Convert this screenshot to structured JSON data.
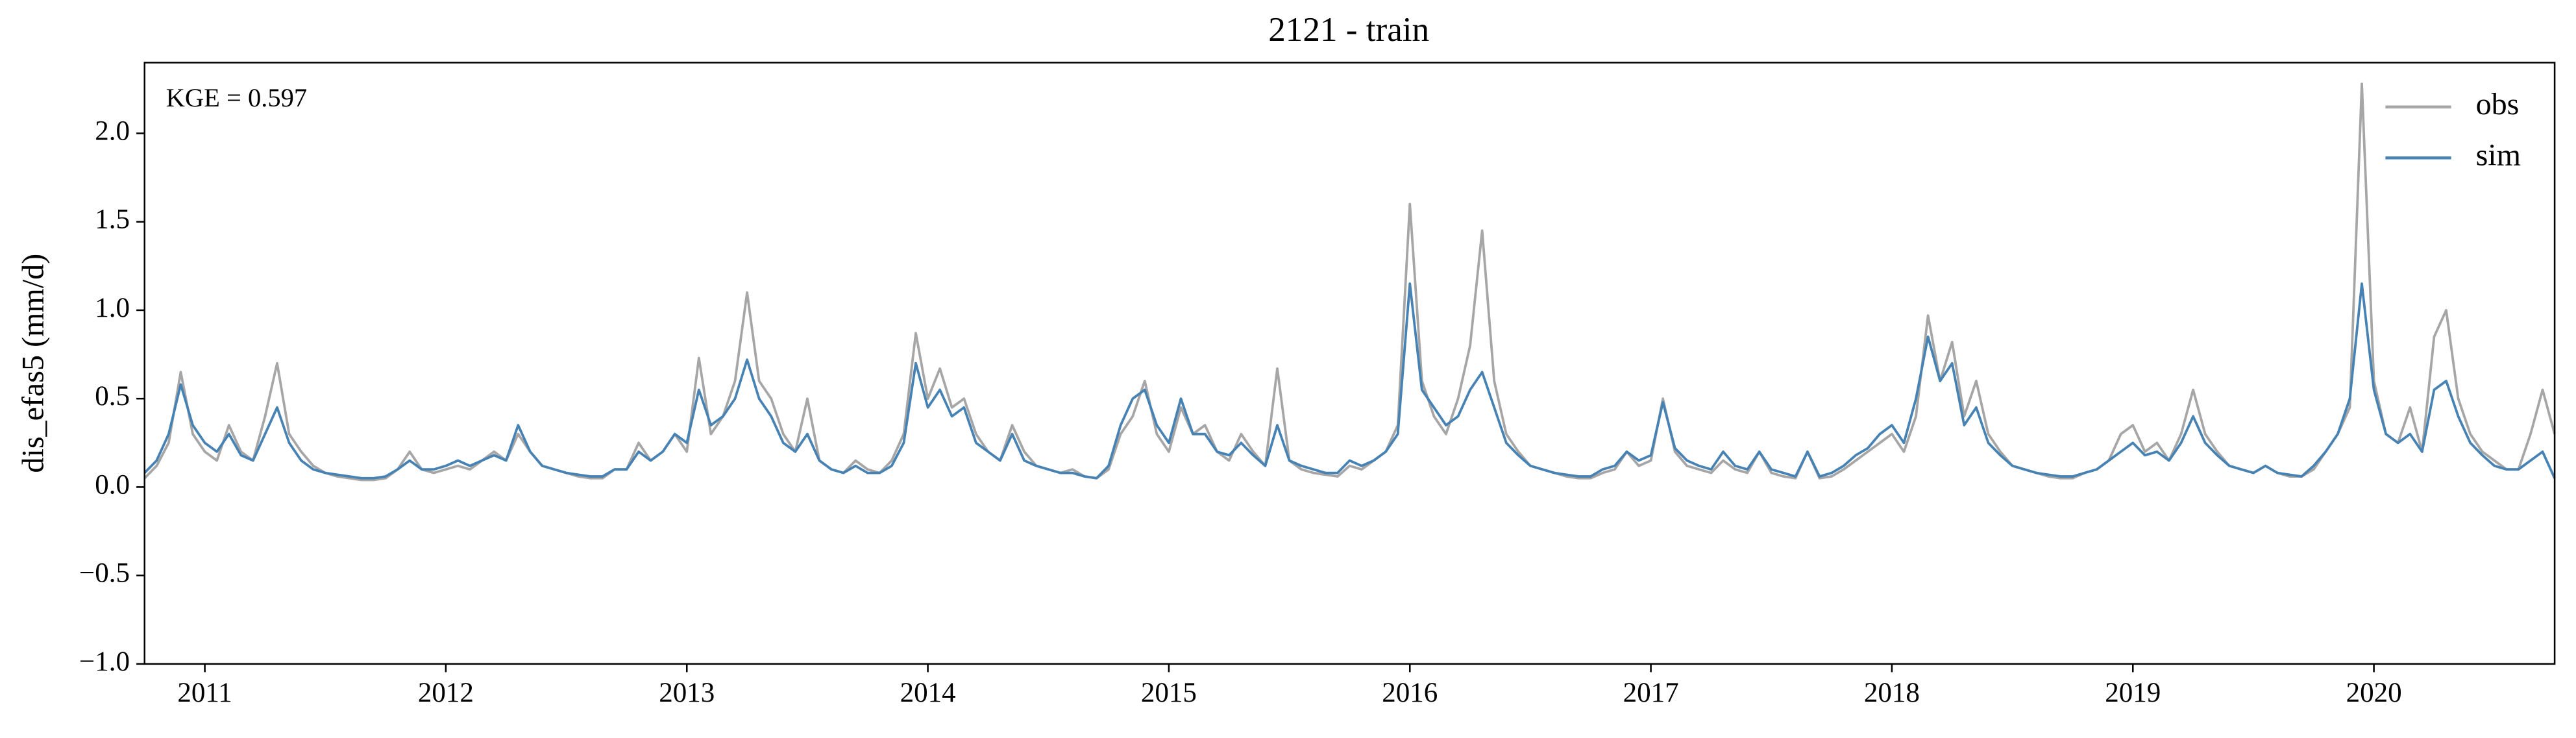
{
  "chart_data": {
    "type": "line",
    "title": "2121 - train",
    "ylabel": "dis_efas5 (mm/d)",
    "annotation": "KGE = 0.597",
    "x": [
      2010.75,
      2010.8,
      2010.85,
      2010.9,
      2010.95,
      2011,
      2011.05,
      2011.1,
      2011.15,
      2011.2,
      2011.25,
      2011.3,
      2011.35,
      2011.4,
      2011.45,
      2011.5,
      2011.55,
      2011.6,
      2011.65,
      2011.7,
      2011.75,
      2011.8,
      2011.85,
      2011.9,
      2011.95,
      2012,
      2012.05,
      2012.1,
      2012.15,
      2012.2,
      2012.25,
      2012.3,
      2012.35,
      2012.4,
      2012.45,
      2012.5,
      2012.55,
      2012.6,
      2012.65,
      2012.7,
      2012.75,
      2012.8,
      2012.85,
      2012.9,
      2012.95,
      2013,
      2013.05,
      2013.1,
      2013.15,
      2013.2,
      2013.25,
      2013.3,
      2013.35,
      2013.4,
      2013.45,
      2013.5,
      2013.55,
      2013.6,
      2013.65,
      2013.7,
      2013.75,
      2013.8,
      2013.85,
      2013.9,
      2013.95,
      2014,
      2014.05,
      2014.1,
      2014.15,
      2014.2,
      2014.25,
      2014.3,
      2014.35,
      2014.4,
      2014.45,
      2014.5,
      2014.55,
      2014.6,
      2014.65,
      2014.7,
      2014.75,
      2014.8,
      2014.85,
      2014.9,
      2014.95,
      2015,
      2015.05,
      2015.1,
      2015.15,
      2015.2,
      2015.25,
      2015.3,
      2015.35,
      2015.4,
      2015.45,
      2015.5,
      2015.55,
      2015.6,
      2015.65,
      2015.7,
      2015.75,
      2015.8,
      2015.85,
      2015.9,
      2015.95,
      2016,
      2016.05,
      2016.1,
      2016.15,
      2016.2,
      2016.25,
      2016.3,
      2016.35,
      2016.4,
      2016.45,
      2016.5,
      2016.55,
      2016.6,
      2016.65,
      2016.7,
      2016.75,
      2016.8,
      2016.85,
      2016.9,
      2016.95,
      2017,
      2017.05,
      2017.1,
      2017.15,
      2017.2,
      2017.25,
      2017.3,
      2017.35,
      2017.4,
      2017.45,
      2017.5,
      2017.55,
      2017.6,
      2017.65,
      2017.7,
      2017.75,
      2017.8,
      2017.85,
      2017.9,
      2017.95,
      2018,
      2018.05,
      2018.1,
      2018.15,
      2018.2,
      2018.25,
      2018.3,
      2018.35,
      2018.4,
      2018.45,
      2018.5,
      2018.55,
      2018.6,
      2018.65,
      2018.7,
      2018.75,
      2018.8,
      2018.85,
      2018.9,
      2018.95,
      2019,
      2019.05,
      2019.1,
      2019.15,
      2019.2,
      2019.25,
      2019.3,
      2019.35,
      2019.4,
      2019.45,
      2019.5,
      2019.55,
      2019.6,
      2019.65,
      2019.7,
      2019.75,
      2019.8,
      2019.85,
      2019.9,
      2019.95,
      2020,
      2020.05,
      2020.1,
      2020.15,
      2020.2,
      2020.25,
      2020.3,
      2020.35,
      2020.4,
      2020.45,
      2020.5,
      2020.55,
      2020.6,
      2020.65,
      2020.7,
      2020.75
    ],
    "series": [
      {
        "name": "obs",
        "color": "#a6a6a6",
        "values": [
          0.05,
          0.12,
          0.25,
          0.65,
          0.3,
          0.2,
          0.15,
          0.35,
          0.2,
          0.15,
          0.4,
          0.7,
          0.3,
          0.2,
          0.12,
          0.08,
          0.06,
          0.05,
          0.04,
          0.04,
          0.05,
          0.1,
          0.2,
          0.1,
          0.08,
          0.1,
          0.12,
          0.1,
          0.15,
          0.2,
          0.15,
          0.3,
          0.2,
          0.12,
          0.1,
          0.08,
          0.06,
          0.05,
          0.05,
          0.1,
          0.1,
          0.25,
          0.15,
          0.2,
          0.3,
          0.2,
          0.73,
          0.3,
          0.4,
          0.6,
          1.1,
          0.6,
          0.5,
          0.3,
          0.2,
          0.5,
          0.15,
          0.1,
          0.08,
          0.15,
          0.1,
          0.08,
          0.15,
          0.3,
          0.87,
          0.5,
          0.67,
          0.45,
          0.5,
          0.3,
          0.2,
          0.15,
          0.35,
          0.2,
          0.12,
          0.1,
          0.08,
          0.1,
          0.06,
          0.05,
          0.1,
          0.3,
          0.4,
          0.6,
          0.3,
          0.2,
          0.45,
          0.3,
          0.35,
          0.2,
          0.15,
          0.3,
          0.2,
          0.12,
          0.67,
          0.15,
          0.1,
          0.08,
          0.07,
          0.06,
          0.12,
          0.1,
          0.15,
          0.2,
          0.35,
          1.6,
          0.6,
          0.4,
          0.3,
          0.5,
          0.8,
          1.45,
          0.6,
          0.3,
          0.2,
          0.12,
          0.1,
          0.08,
          0.06,
          0.05,
          0.05,
          0.08,
          0.1,
          0.2,
          0.12,
          0.15,
          0.5,
          0.2,
          0.12,
          0.1,
          0.08,
          0.15,
          0.1,
          0.08,
          0.2,
          0.08,
          0.06,
          0.05,
          0.2,
          0.05,
          0.06,
          0.1,
          0.15,
          0.2,
          0.25,
          0.3,
          0.2,
          0.4,
          0.97,
          0.6,
          0.82,
          0.4,
          0.6,
          0.3,
          0.2,
          0.12,
          0.1,
          0.08,
          0.06,
          0.05,
          0.05,
          0.08,
          0.1,
          0.15,
          0.3,
          0.35,
          0.2,
          0.25,
          0.15,
          0.3,
          0.55,
          0.3,
          0.2,
          0.12,
          0.1,
          0.08,
          0.12,
          0.08,
          0.06,
          0.06,
          0.1,
          0.2,
          0.3,
          0.45,
          2.28,
          0.6,
          0.3,
          0.25,
          0.45,
          0.2,
          0.85,
          1.0,
          0.5,
          0.3,
          0.2,
          0.15,
          0.1,
          0.1,
          0.3,
          0.55,
          0.3
        ]
      },
      {
        "name": "sim",
        "color": "#4682b4",
        "values": [
          0.08,
          0.15,
          0.3,
          0.58,
          0.35,
          0.25,
          0.2,
          0.3,
          0.18,
          0.15,
          0.3,
          0.45,
          0.25,
          0.15,
          0.1,
          0.08,
          0.07,
          0.06,
          0.05,
          0.05,
          0.06,
          0.1,
          0.15,
          0.1,
          0.1,
          0.12,
          0.15,
          0.12,
          0.15,
          0.18,
          0.15,
          0.35,
          0.2,
          0.12,
          0.1,
          0.08,
          0.07,
          0.06,
          0.06,
          0.1,
          0.1,
          0.2,
          0.15,
          0.2,
          0.3,
          0.25,
          0.55,
          0.35,
          0.4,
          0.5,
          0.72,
          0.5,
          0.4,
          0.25,
          0.2,
          0.3,
          0.15,
          0.1,
          0.08,
          0.12,
          0.08,
          0.08,
          0.12,
          0.25,
          0.7,
          0.45,
          0.55,
          0.4,
          0.45,
          0.25,
          0.2,
          0.15,
          0.3,
          0.15,
          0.12,
          0.1,
          0.08,
          0.08,
          0.06,
          0.05,
          0.12,
          0.35,
          0.5,
          0.55,
          0.35,
          0.25,
          0.5,
          0.3,
          0.3,
          0.2,
          0.18,
          0.25,
          0.18,
          0.12,
          0.35,
          0.15,
          0.12,
          0.1,
          0.08,
          0.08,
          0.15,
          0.12,
          0.15,
          0.2,
          0.3,
          1.15,
          0.55,
          0.45,
          0.35,
          0.4,
          0.55,
          0.65,
          0.45,
          0.25,
          0.18,
          0.12,
          0.1,
          0.08,
          0.07,
          0.06,
          0.06,
          0.1,
          0.12,
          0.2,
          0.15,
          0.18,
          0.48,
          0.22,
          0.15,
          0.12,
          0.1,
          0.2,
          0.12,
          0.1,
          0.2,
          0.1,
          0.08,
          0.06,
          0.2,
          0.06,
          0.08,
          0.12,
          0.18,
          0.22,
          0.3,
          0.35,
          0.25,
          0.5,
          0.85,
          0.6,
          0.7,
          0.35,
          0.45,
          0.25,
          0.18,
          0.12,
          0.1,
          0.08,
          0.07,
          0.06,
          0.06,
          0.08,
          0.1,
          0.15,
          0.2,
          0.25,
          0.18,
          0.2,
          0.15,
          0.25,
          0.4,
          0.25,
          0.18,
          0.12,
          0.1,
          0.08,
          0.12,
          0.08,
          0.07,
          0.06,
          0.12,
          0.2,
          0.3,
          0.5,
          1.15,
          0.55,
          0.3,
          0.25,
          0.3,
          0.2,
          0.55,
          0.6,
          0.4,
          0.25,
          0.18,
          0.12,
          0.1,
          0.1,
          0.15,
          0.2,
          0.05
        ]
      }
    ],
    "xlim": [
      2010.75,
      2020.75
    ],
    "xticks": [
      2011,
      2012,
      2013,
      2014,
      2015,
      2016,
      2017,
      2018,
      2019,
      2020
    ],
    "ylim": [
      -1,
      2.4
    ],
    "yticks": [
      {
        "value": -1,
        "label": "−1.0"
      },
      {
        "value": -0.5,
        "label": "−0.5"
      },
      {
        "value": 0,
        "label": "0.0"
      },
      0.5,
      {
        "value": 1,
        "label": "1.0"
      },
      1.5,
      {
        "value": 2,
        "label": "2.0"
      }
    ],
    "legend": "upper right",
    "grid": false
  }
}
